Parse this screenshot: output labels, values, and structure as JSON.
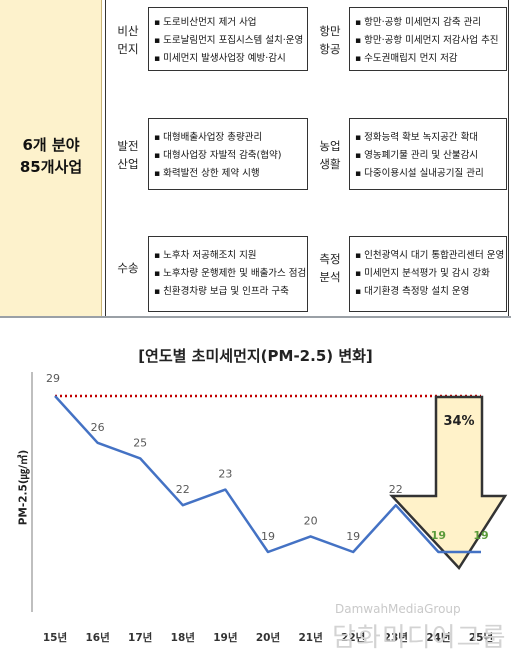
{
  "summary": {
    "label_line1": "6개 분야",
    "label_line2": "85개사업"
  },
  "sectors": [
    {
      "name_line1": "비산",
      "name_line2": "먼지",
      "items": [
        "도로비산먼지 제거 사업",
        "도로날림먼지 포집시스템 설치·운영",
        "미세먼지 발생사업장 예방·감시"
      ]
    },
    {
      "name_line1": "항만",
      "name_line2": "항공",
      "items": [
        "항만·공항 미세먼지 감축 관리",
        "항만·공항 미세먼지 저감사업 추진",
        "수도권매립지 먼지 저감"
      ]
    },
    {
      "name_line1": "발전",
      "name_line2": "산업",
      "items": [
        "대형배출사업장 총량관리",
        "대형사업장 자발적 감축(협약)",
        "화력발전 상한 제약 시행"
      ]
    },
    {
      "name_line1": "농업",
      "name_line2": "생활",
      "items": [
        "정화능력 확보 녹지공간 확대",
        "영농폐기물 관리 및 산불감시",
        "다중이용시설 실내공기질 관리"
      ]
    },
    {
      "name_line1": "수송",
      "name_line2": "",
      "items": [
        "노후차 저공해조치 지원",
        "노후차량 운행제한 및 배출가스 점검",
        "친환경차량 보급 및 인프라 구축"
      ]
    },
    {
      "name_line1": "측정",
      "name_line2": "분석",
      "items": [
        "인천광역시 대기 통합관리센터 운영",
        "미세먼지 분석평가 및 감시 강화",
        "대기환경 측정망 설치 운영"
      ]
    }
  ],
  "chart_data": {
    "type": "line",
    "title": "[연도별 초미세먼지(PM-2.5) 변화]",
    "ylabel": "PM-2.5(㎍/㎥)",
    "categories": [
      "15년",
      "16년",
      "17년",
      "18년",
      "19년",
      "20년",
      "21년",
      "22년",
      "23년",
      "24년",
      "25년"
    ],
    "values": [
      29,
      26,
      25,
      22,
      23,
      19,
      20,
      19,
      22,
      19,
      19
    ],
    "reference_value": 29,
    "reference_style": "dotted",
    "annotation": "34%",
    "ylim": [
      16,
      30
    ],
    "grid": false,
    "colors": {
      "line": "#4472c4",
      "reference": "#c00000",
      "label": "#595959",
      "highlight_label": "#5b9b3a",
      "arrow_fill": "#fff2c9",
      "arrow_stroke": "#333333"
    }
  },
  "watermark": {
    "line1": "DamwahMediaGroup",
    "line2": "담화미디어그룹"
  }
}
